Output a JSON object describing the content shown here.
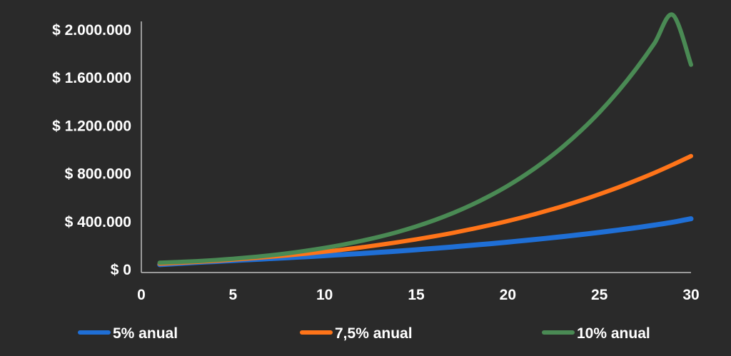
{
  "chart_data": {
    "type": "line",
    "title": "",
    "xlabel": "",
    "ylabel": "",
    "x": [
      1,
      2,
      3,
      4,
      5,
      6,
      7,
      8,
      9,
      10,
      11,
      12,
      13,
      14,
      15,
      16,
      17,
      18,
      19,
      20,
      21,
      22,
      23,
      24,
      25,
      26,
      27,
      28,
      29,
      30
    ],
    "xlim": [
      0,
      30
    ],
    "ylim": [
      0,
      2000000
    ],
    "x_ticks": [
      0,
      5,
      10,
      15,
      20,
      25,
      30
    ],
    "x_tick_labels": [
      "0",
      "5",
      "10",
      "15",
      "20",
      "25",
      "30"
    ],
    "y_ticks": [
      0,
      400000,
      800000,
      1200000,
      1600000,
      2000000
    ],
    "y_tick_labels": [
      "$ 0",
      "$ 400.000",
      "$ 800.000",
      "$ 1.200.000",
      "$ 1.600.000",
      "$ 2.000.000"
    ],
    "grid": false,
    "legend_position": "bottom",
    "series": [
      {
        "name": "5% anual",
        "color": "#1f6fd6",
        "values": [
          42000,
          51000,
          60000,
          68000,
          76000,
          84000,
          92000,
          100000,
          108000,
          117000,
          126000,
          135000,
          145000,
          155000,
          166000,
          178000,
          190000,
          203000,
          216000,
          230000,
          245000,
          260000,
          276000,
          293000,
          311000,
          330000,
          350000,
          372000,
          396000,
          425000
        ]
      },
      {
        "name": "7,5% anual",
        "color": "#ff7419",
        "values": [
          50000,
          57000,
          65000,
          74000,
          84000,
          95000,
          107000,
          120000,
          134000,
          150000,
          167000,
          186000,
          207000,
          229000,
          253000,
          279000,
          307000,
          338000,
          371000,
          406000,
          444000,
          486000,
          530000,
          578000,
          630000,
          685000,
          745000,
          808000,
          876000,
          948000
        ]
      },
      {
        "name": "10% anual",
        "color": "#4a8a54",
        "values": [
          58000,
          64000,
          71000,
          80000,
          91000,
          104000,
          119000,
          137000,
          158000,
          182000,
          209000,
          240000,
          275000,
          315000,
          361000,
          413000,
          472000,
          539000,
          615000,
          700000,
          796000,
          904000,
          1025000,
          1161000,
          1313000,
          1484000,
          1675000,
          1888000,
          2126000,
          1710000
        ]
      }
    ]
  }
}
